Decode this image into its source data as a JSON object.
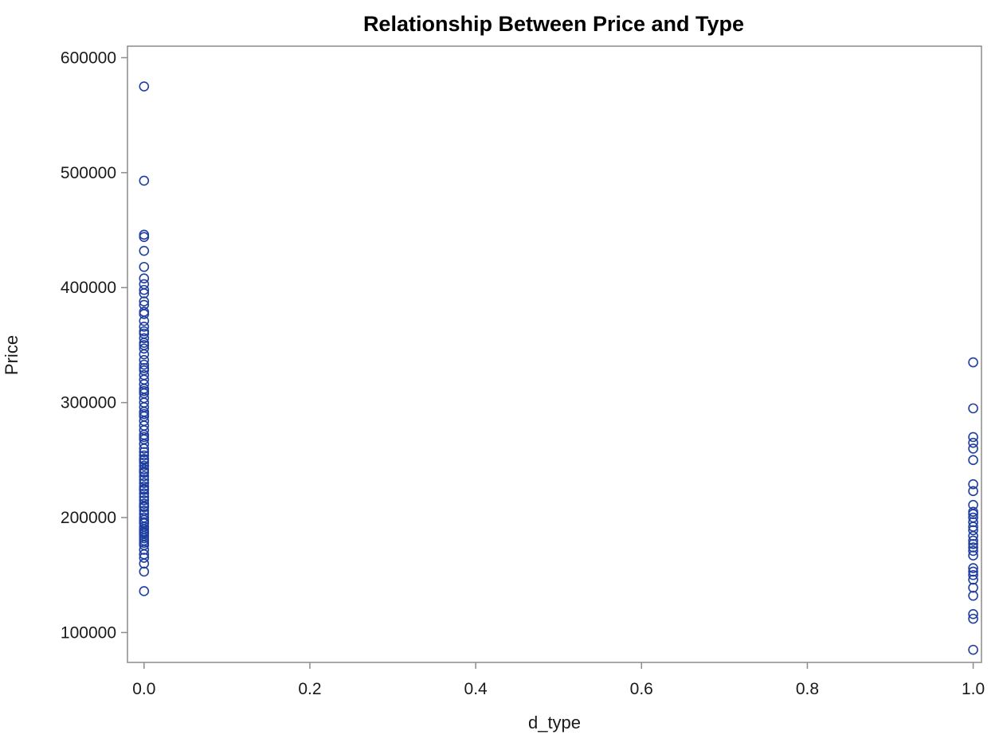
{
  "chart_data": {
    "type": "scatter",
    "title": "Relationship Between Price and Type",
    "xlabel": "d_type",
    "ylabel": "Price",
    "xlim": [
      -0.02,
      1.01
    ],
    "ylim": [
      74000,
      610000
    ],
    "x_ticks": [
      0.0,
      0.2,
      0.4,
      0.6,
      0.8,
      1.0
    ],
    "x_tick_labels": [
      "0.0",
      "0.2",
      "0.4",
      "0.6",
      "0.8",
      "1.0"
    ],
    "y_ticks": [
      100000,
      200000,
      300000,
      400000,
      500000,
      600000
    ],
    "y_tick_labels": [
      "100000",
      "200000",
      "300000",
      "400000",
      "500000",
      "600000"
    ],
    "grid": false,
    "legend": "none",
    "marker": "open-circle",
    "marker_color": "#1f3fa0",
    "series": [
      {
        "x": [
          0,
          0,
          0,
          0,
          0,
          0,
          0,
          0,
          0,
          0,
          0,
          0,
          0,
          0,
          0,
          0,
          0,
          0,
          0,
          0,
          0,
          0,
          0,
          0,
          0,
          0,
          0,
          0,
          0,
          0,
          0,
          0,
          0,
          0,
          0,
          0,
          0,
          0,
          0,
          0,
          0,
          0,
          0,
          0,
          0,
          0,
          0,
          0,
          0,
          0,
          0,
          0,
          0,
          0,
          0,
          0,
          0,
          0,
          0,
          0,
          0,
          0,
          0,
          0,
          0,
          0,
          0,
          0,
          0,
          0,
          0,
          0,
          0,
          0,
          0,
          0,
          0,
          0,
          0,
          0,
          0,
          0,
          0,
          0,
          0,
          0,
          0,
          0,
          0,
          0
        ],
        "y": [
          575000,
          493000,
          446000,
          444000,
          432000,
          418000,
          408000,
          403000,
          398000,
          388000,
          385000,
          379000,
          371000,
          366000,
          360000,
          356000,
          352000,
          347000,
          342000,
          337000,
          333000,
          328000,
          324000,
          320000,
          316000,
          312000,
          308000,
          304000,
          300000,
          296000,
          292000,
          288000,
          284000,
          280000,
          276000,
          272000,
          268000,
          264000,
          260000,
          257000,
          254000,
          251000,
          248000,
          245000,
          242000,
          239000,
          236000,
          233000,
          230000,
          227000,
          224000,
          221000,
          218000,
          215000,
          212000,
          209000,
          206000,
          203000,
          200000,
          198000,
          195000,
          192000,
          190000,
          188000,
          186000,
          184000,
          182000,
          180000,
          176000,
          172000,
          168000,
          165000,
          160000,
          153000,
          136000,
          350000,
          330000,
          310000,
          290000,
          270000,
          250000,
          240000,
          225000,
          210000,
          196000,
          187000,
          178000,
          362000,
          377000,
          395000
        ]
      },
      {
        "x": [
          1,
          1,
          1,
          1,
          1,
          1,
          1,
          1,
          1,
          1,
          1,
          1,
          1,
          1,
          1,
          1,
          1,
          1,
          1,
          1,
          1,
          1,
          1,
          1,
          1,
          1,
          1,
          1,
          1,
          1
        ],
        "y": [
          335000,
          295000,
          270000,
          265000,
          260000,
          250000,
          229000,
          223000,
          211000,
          203000,
          200000,
          196000,
          189000,
          184000,
          180000,
          177000,
          174000,
          171000,
          156000,
          153000,
          146000,
          139000,
          132000,
          116000,
          112000,
          85000,
          205000,
          192000,
          167000,
          150000
        ]
      }
    ]
  }
}
